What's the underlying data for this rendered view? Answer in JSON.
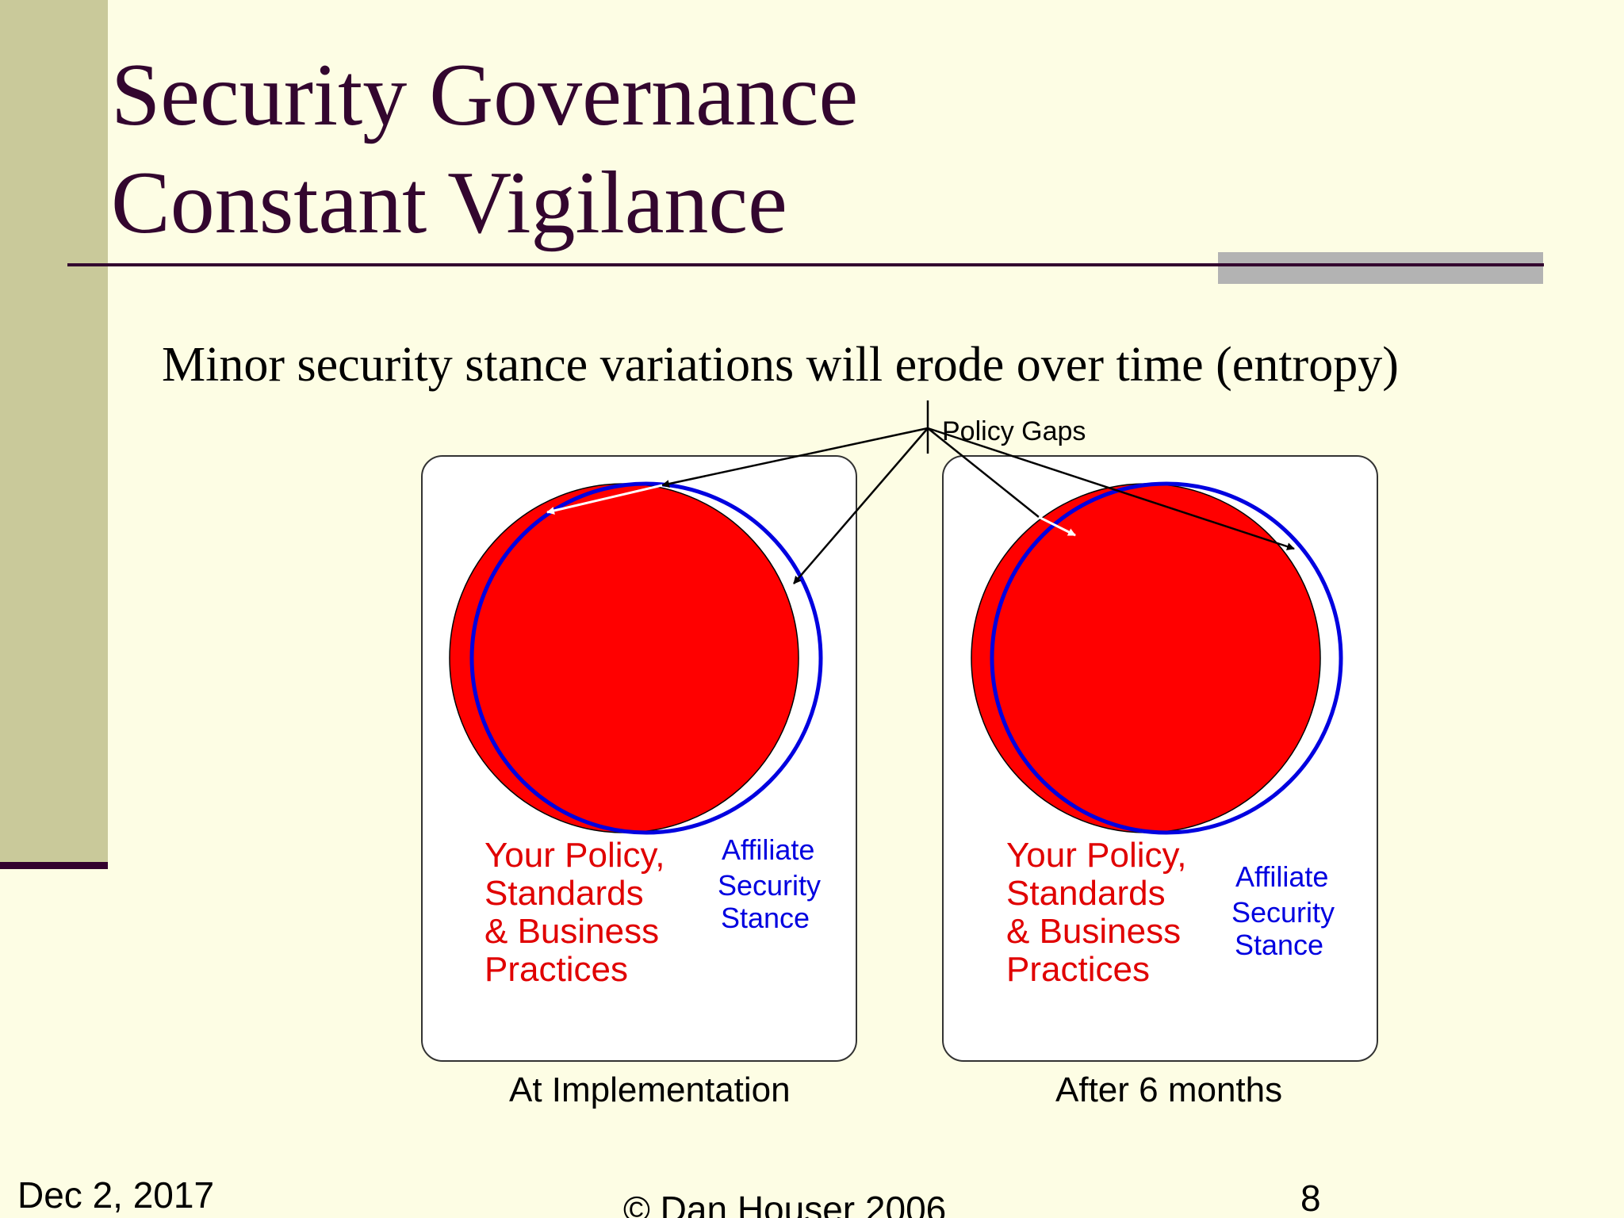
{
  "slide": {
    "title_line1": "Security Governance",
    "title_line2": "Constant Vigilance",
    "subtitle": "Minor security stance variations will erode over time (entropy)"
  },
  "diagram": {
    "callout_label": "Policy Gaps",
    "panels": [
      {
        "policy_label_lines": [
          "Your Policy,",
          "Standards",
          "& Business",
          "Practices"
        ],
        "stance_label_lines": [
          "Affiliate",
          "Security",
          "Stance"
        ],
        "caption": "At Implementation"
      },
      {
        "policy_label_lines": [
          "Your Policy,",
          "Standards",
          "& Business",
          "Practices"
        ],
        "stance_label_lines": [
          "Affiliate",
          "Security",
          "Stance"
        ],
        "caption": "After 6 months"
      }
    ],
    "colors": {
      "policy_fill": "#ff0000",
      "stance_stroke": "#0000e0",
      "arrow": "#000000"
    }
  },
  "footer": {
    "date": "Dec 2, 2017",
    "copyright": "© Dan Houser 2006",
    "page": "8"
  },
  "theme": {
    "background": "#fdfde4",
    "sidebar": "#c9c99a",
    "title_color": "#33062f"
  }
}
